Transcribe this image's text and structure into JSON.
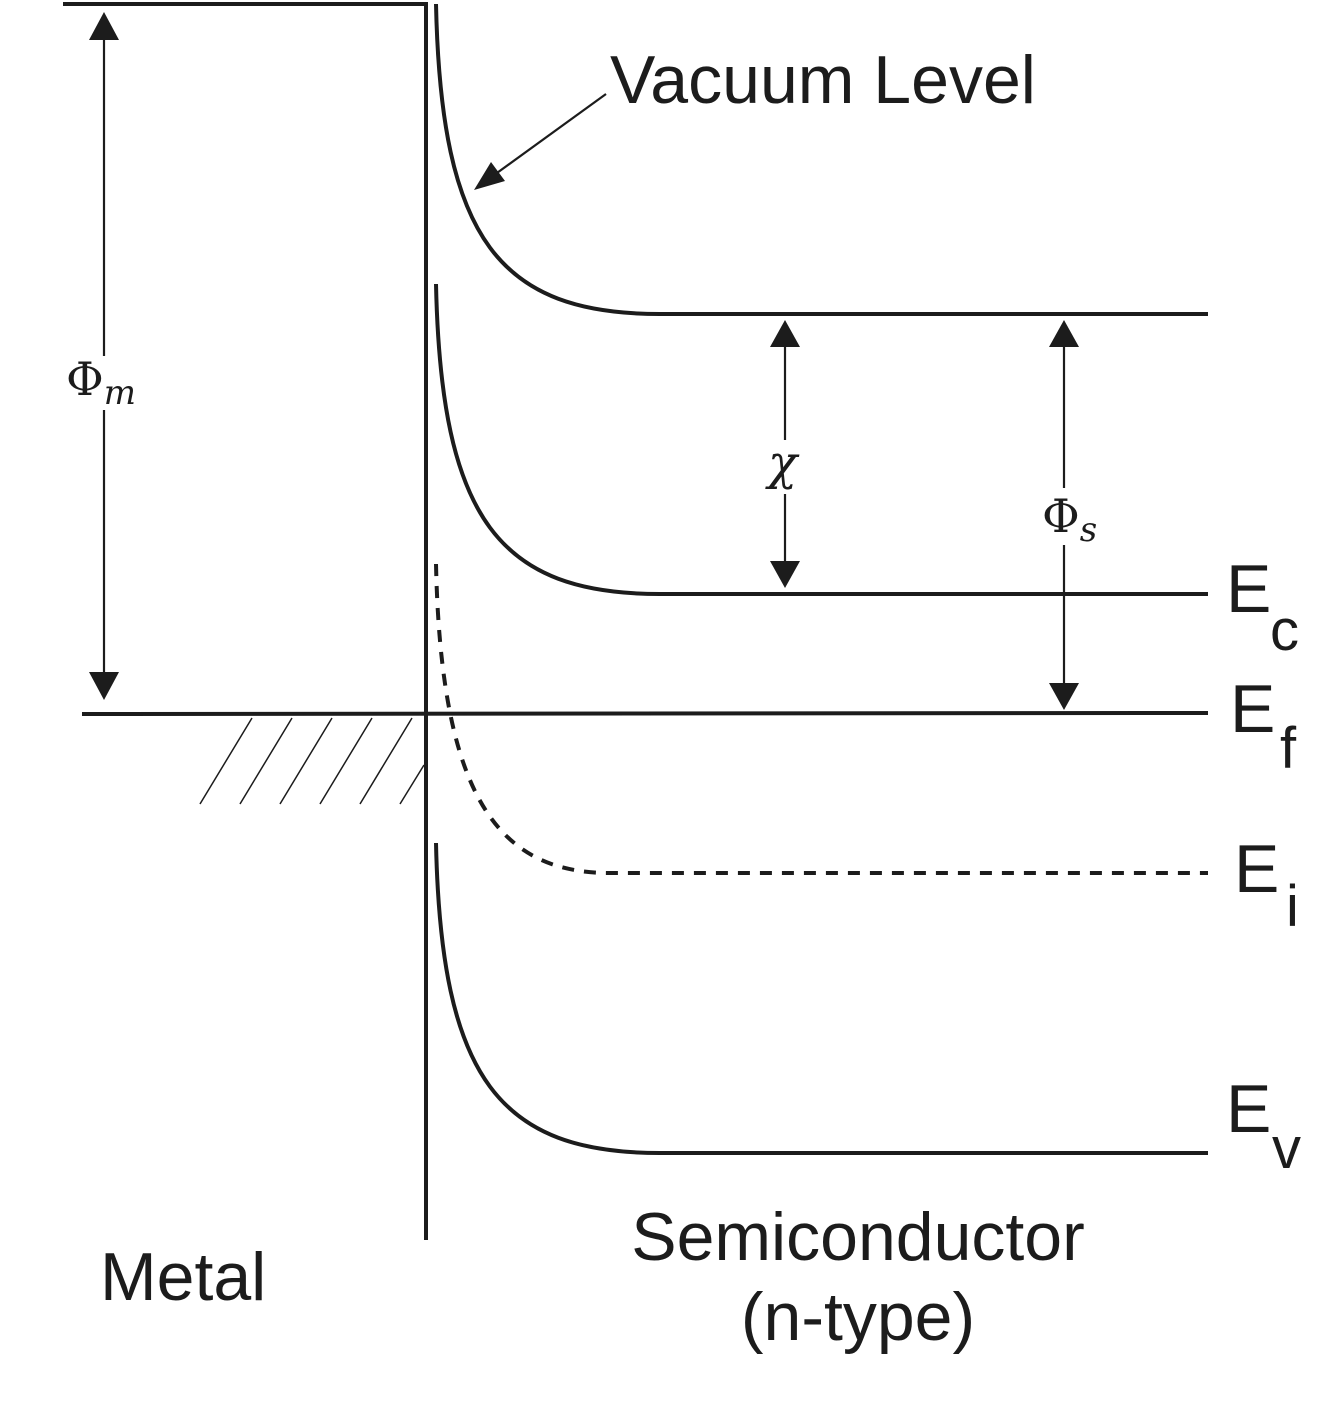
{
  "labels": {
    "vacuum_level": "Vacuum Level",
    "phi_m": {
      "main": "Φ",
      "sub": "m"
    },
    "chi": "χ",
    "phi_s": {
      "main": "Φ",
      "sub": "s"
    },
    "ec": {
      "main": "E",
      "sub": "c"
    },
    "ef": {
      "main": "E",
      "sub": "f"
    },
    "ei": {
      "main": "E",
      "sub": "i"
    },
    "ev": {
      "main": "E",
      "sub": "v"
    },
    "metal": "Metal",
    "semiconductor": "Semiconductor",
    "semiconductor_type": "(n-type)"
  },
  "colors": {
    "ink": "#1c1c1c",
    "background": "#ffffff"
  }
}
